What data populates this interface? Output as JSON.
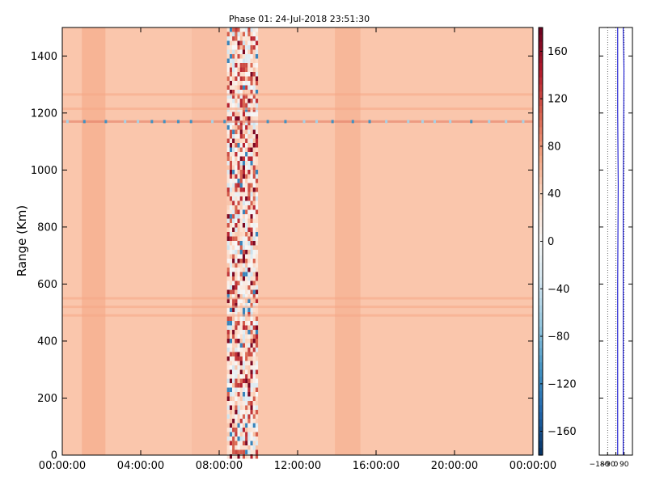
{
  "chart_data": [
    {
      "type": "heatmap",
      "title": "Phase 01: 24-Jul-2018 23:51:30",
      "xlabel": "",
      "ylabel": "Range (Km)",
      "x_tick_labels": [
        "00:00:00",
        "04:00:00",
        "08:00:00",
        "12:00:00",
        "16:00:00",
        "20:00:00",
        "00:00:00"
      ],
      "x_tick_hours": [
        0,
        4,
        8,
        12,
        16,
        20,
        24
      ],
      "xlim_hours": [
        0,
        24
      ],
      "y_ticks": [
        0,
        200,
        400,
        600,
        800,
        1000,
        1200,
        1400
      ],
      "ylim": [
        0,
        1500
      ],
      "colormap": "RdBu_r",
      "clim": [
        -180,
        180
      ],
      "colorbar_ticks": [
        160,
        120,
        80,
        40,
        0,
        -40,
        -80,
        -120,
        -160
      ],
      "colorbar_tick_labels": [
        "160",
        "120",
        "80",
        "40",
        "0",
        "−40",
        "−80",
        "−120",
        "−160"
      ],
      "background_value": 50,
      "noisy_band_hours": [
        8.4,
        9.9
      ],
      "horizontal_stripe_ranges_km": [
        1170,
        1265,
        1215,
        550,
        520,
        490
      ]
    },
    {
      "type": "line",
      "x_tick_labels": [
        "−180",
        "−90",
        "0",
        "90"
      ],
      "x_ticks": [
        -180,
        -90,
        0,
        90
      ],
      "xlim": [
        -180,
        180
      ],
      "ylim": [
        0,
        1500
      ],
      "y_ticks": [
        0,
        200,
        400,
        600,
        800,
        1000,
        1200,
        1400
      ],
      "series": [
        {
          "color": "#0000cc",
          "x": [
            20,
            20,
            25,
            20,
            20
          ],
          "y": [
            0,
            600,
            950,
            1200,
            1500
          ]
        },
        {
          "color": "#0000cc",
          "x": [
            80,
            80,
            88,
            80
          ],
          "y": [
            0,
            900,
            1350,
            1500
          ]
        }
      ],
      "grid": "vertical dotted"
    }
  ]
}
